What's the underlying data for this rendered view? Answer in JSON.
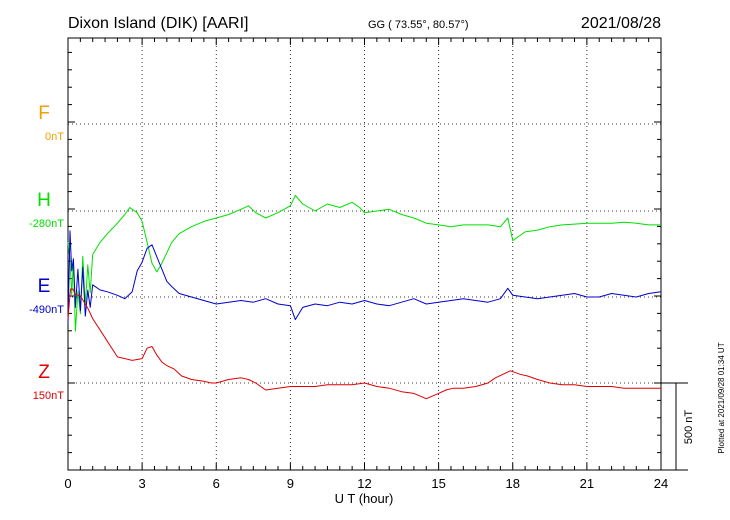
{
  "header": {
    "station": "Dixon Island (DIK)  [AARI]",
    "coords": "GG ( 73.55°,  80.57°)",
    "date": "2021/08/28"
  },
  "plotted_note": "Plotted at 2021/09/28 01:34 UT",
  "scale_bar": {
    "label": "500 nT",
    "value_nT": 500
  },
  "chart_data": {
    "type": "line",
    "title": "Dixon Island (DIK)  [AARI]",
    "xlabel": "U T (hour)",
    "xlim": [
      0,
      24
    ],
    "xticks": [
      0,
      3,
      6,
      9,
      12,
      15,
      18,
      21,
      24
    ],
    "x_tick_labels": [
      "0",
      "3",
      "6",
      "9",
      "12",
      "15",
      "18",
      "21",
      "24"
    ],
    "grid": true,
    "series": [
      {
        "name": "F",
        "baseline_label": "0nT",
        "color": "#f0a000",
        "x": [],
        "values": []
      },
      {
        "name": "H",
        "baseline_label": "-280nT",
        "color": "#00e000",
        "x": [
          0,
          0.08,
          0.15,
          0.22,
          0.3,
          0.4,
          0.5,
          0.6,
          0.7,
          0.8,
          0.9,
          1.0,
          1.3,
          1.6,
          2.0,
          2.3,
          2.5,
          2.8,
          3.0,
          3.2,
          3.4,
          3.6,
          3.8,
          4.0,
          4.2,
          4.5,
          5.0,
          5.5,
          6.0,
          6.5,
          7.0,
          7.3,
          7.6,
          8.0,
          8.5,
          9.0,
          9.2,
          9.5,
          10.0,
          10.5,
          11.0,
          11.5,
          11.8,
          12.0,
          12.5,
          13.0,
          13.5,
          14.0,
          14.5,
          15.0,
          15.5,
          16.0,
          16.5,
          17.0,
          17.5,
          17.8,
          18.0,
          18.5,
          19.0,
          19.5,
          20.0,
          20.5,
          21.0,
          21.5,
          22.0,
          22.5,
          23.0,
          23.5,
          24.0
        ],
        "values": [
          -180,
          -280,
          -480,
          -290,
          -690,
          -460,
          -590,
          -260,
          -540,
          -310,
          -470,
          -250,
          -180,
          -130,
          -70,
          -20,
          20,
          -10,
          -60,
          -180,
          -300,
          -350,
          -300,
          -240,
          -180,
          -130,
          -90,
          -60,
          -40,
          -20,
          10,
          30,
          -10,
          -40,
          -10,
          30,
          90,
          40,
          0,
          40,
          20,
          50,
          20,
          -10,
          0,
          10,
          -20,
          -40,
          -70,
          -80,
          -90,
          -80,
          -80,
          -80,
          -90,
          -40,
          -170,
          -120,
          -110,
          -90,
          -80,
          -75,
          -70,
          -70,
          -70,
          -65,
          -70,
          -80,
          -80
        ]
      },
      {
        "name": "E",
        "baseline_label": "-490nT",
        "color": "#0000d0",
        "x": [
          0,
          0.08,
          0.15,
          0.22,
          0.3,
          0.4,
          0.5,
          0.6,
          0.7,
          0.8,
          0.9,
          1.0,
          1.3,
          1.6,
          2.0,
          2.3,
          2.6,
          2.8,
          3.0,
          3.2,
          3.4,
          3.6,
          3.8,
          4.0,
          4.2,
          4.5,
          5.0,
          5.5,
          6.0,
          6.5,
          7.0,
          7.5,
          8.0,
          8.5,
          9.0,
          9.2,
          9.5,
          10.0,
          10.5,
          11.0,
          11.5,
          12.0,
          12.5,
          13.0,
          13.5,
          14.0,
          14.5,
          15.0,
          15.5,
          16.0,
          16.5,
          17.0,
          17.5,
          17.8,
          18.0,
          18.5,
          19.0,
          19.5,
          20.0,
          20.5,
          21.0,
          21.5,
          22.0,
          22.5,
          23.0,
          23.5,
          24.0
        ],
        "values": [
          -150,
          380,
          150,
          220,
          -60,
          160,
          -80,
          170,
          -110,
          40,
          -60,
          70,
          40,
          30,
          10,
          -10,
          30,
          150,
          200,
          280,
          300,
          230,
          160,
          90,
          60,
          20,
          0,
          -20,
          -40,
          -30,
          -20,
          -30,
          -10,
          -40,
          -50,
          -130,
          -60,
          -40,
          -50,
          -30,
          -40,
          -20,
          -40,
          -50,
          -30,
          -10,
          -40,
          -30,
          -20,
          -10,
          -20,
          -30,
          -10,
          50,
          10,
          0,
          -10,
          0,
          10,
          20,
          0,
          0,
          20,
          10,
          0,
          20,
          30
        ]
      },
      {
        "name": "Z",
        "baseline_label": "150nT",
        "color": "#e00000",
        "x": [
          0,
          0.1,
          0.2,
          0.3,
          0.5,
          0.8,
          1.0,
          1.5,
          2.0,
          2.3,
          2.6,
          3.0,
          3.2,
          3.4,
          3.6,
          3.8,
          4.0,
          4.3,
          4.6,
          5.0,
          5.5,
          5.8,
          6.0,
          6.5,
          7.0,
          7.3,
          7.6,
          8.0,
          8.5,
          9.0,
          9.5,
          10.0,
          10.5,
          11.0,
          11.5,
          12.0,
          12.5,
          13.0,
          13.5,
          14.0,
          14.5,
          15.0,
          15.3,
          15.6,
          16.0,
          16.5,
          17.0,
          17.3,
          17.6,
          17.9,
          18.3,
          18.6,
          19.0,
          19.5,
          20.0,
          20.5,
          21.0,
          21.5,
          22.0,
          22.5,
          23.0,
          23.5,
          24.0
        ],
        "values": [
          370,
          540,
          540,
          510,
          500,
          430,
          370,
          260,
          150,
          140,
          130,
          140,
          200,
          210,
          160,
          120,
          100,
          80,
          40,
          20,
          10,
          0,
          0,
          20,
          30,
          20,
          0,
          -40,
          -30,
          -20,
          -20,
          -20,
          -10,
          -10,
          -10,
          0,
          -20,
          -30,
          -50,
          -60,
          -90,
          -60,
          -40,
          -30,
          -30,
          -20,
          0,
          30,
          50,
          70,
          50,
          40,
          20,
          0,
          -10,
          -10,
          -20,
          -20,
          -20,
          -30,
          -30,
          -30,
          -30
        ]
      }
    ]
  }
}
